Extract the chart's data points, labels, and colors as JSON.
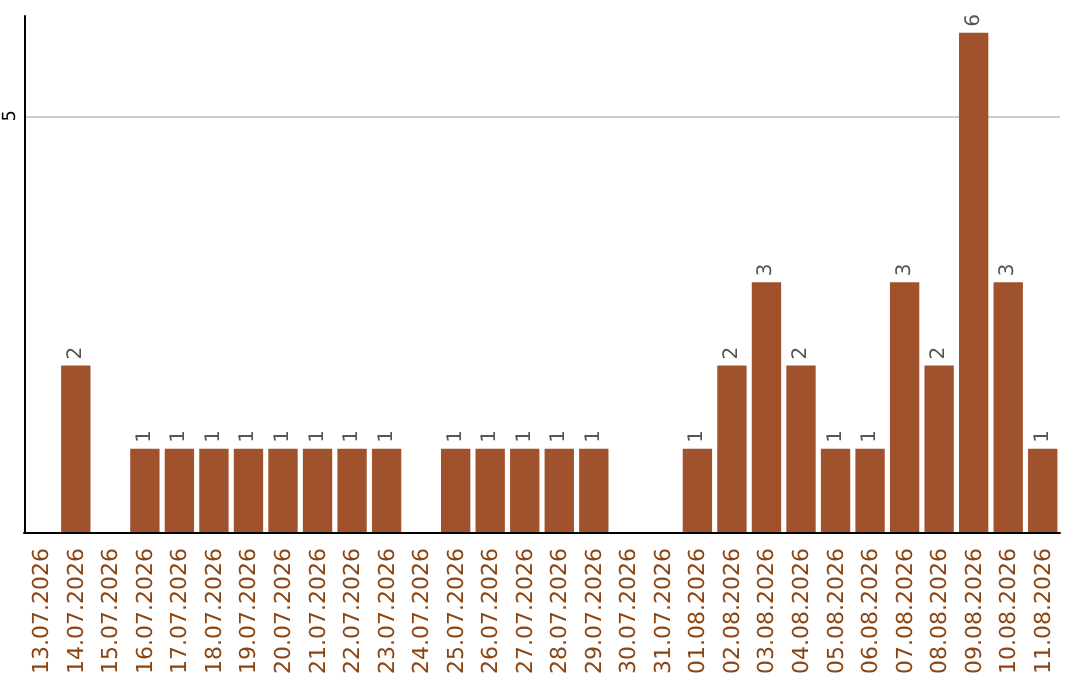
{
  "chart_data": {
    "type": "bar",
    "categories": [
      "13.07.2026",
      "14.07.2026",
      "15.07.2026",
      "16.07.2026",
      "17.07.2026",
      "18.07.2026",
      "19.07.2026",
      "20.07.2026",
      "21.07.2026",
      "22.07.2026",
      "23.07.2026",
      "24.07.2026",
      "25.07.2026",
      "26.07.2026",
      "27.07.2026",
      "28.07.2026",
      "29.07.2026",
      "30.07.2026",
      "31.07.2026",
      "01.08.2026",
      "02.08.2026",
      "03.08.2026",
      "04.08.2026",
      "05.08.2026",
      "06.08.2026",
      "07.08.2026",
      "08.08.2026",
      "09.08.2026",
      "10.08.2026",
      "11.08.2026"
    ],
    "values": [
      null,
      2,
      null,
      1,
      1,
      1,
      1,
      1,
      1,
      1,
      1,
      null,
      1,
      1,
      1,
      1,
      1,
      null,
      null,
      1,
      2,
      3,
      2,
      1,
      1,
      3,
      2,
      6,
      3,
      1
    ],
    "color": "#a0522d",
    "ylim": [
      0,
      6.2
    ],
    "yticks": [
      5
    ],
    "grid": "y",
    "data_labels": true
  }
}
